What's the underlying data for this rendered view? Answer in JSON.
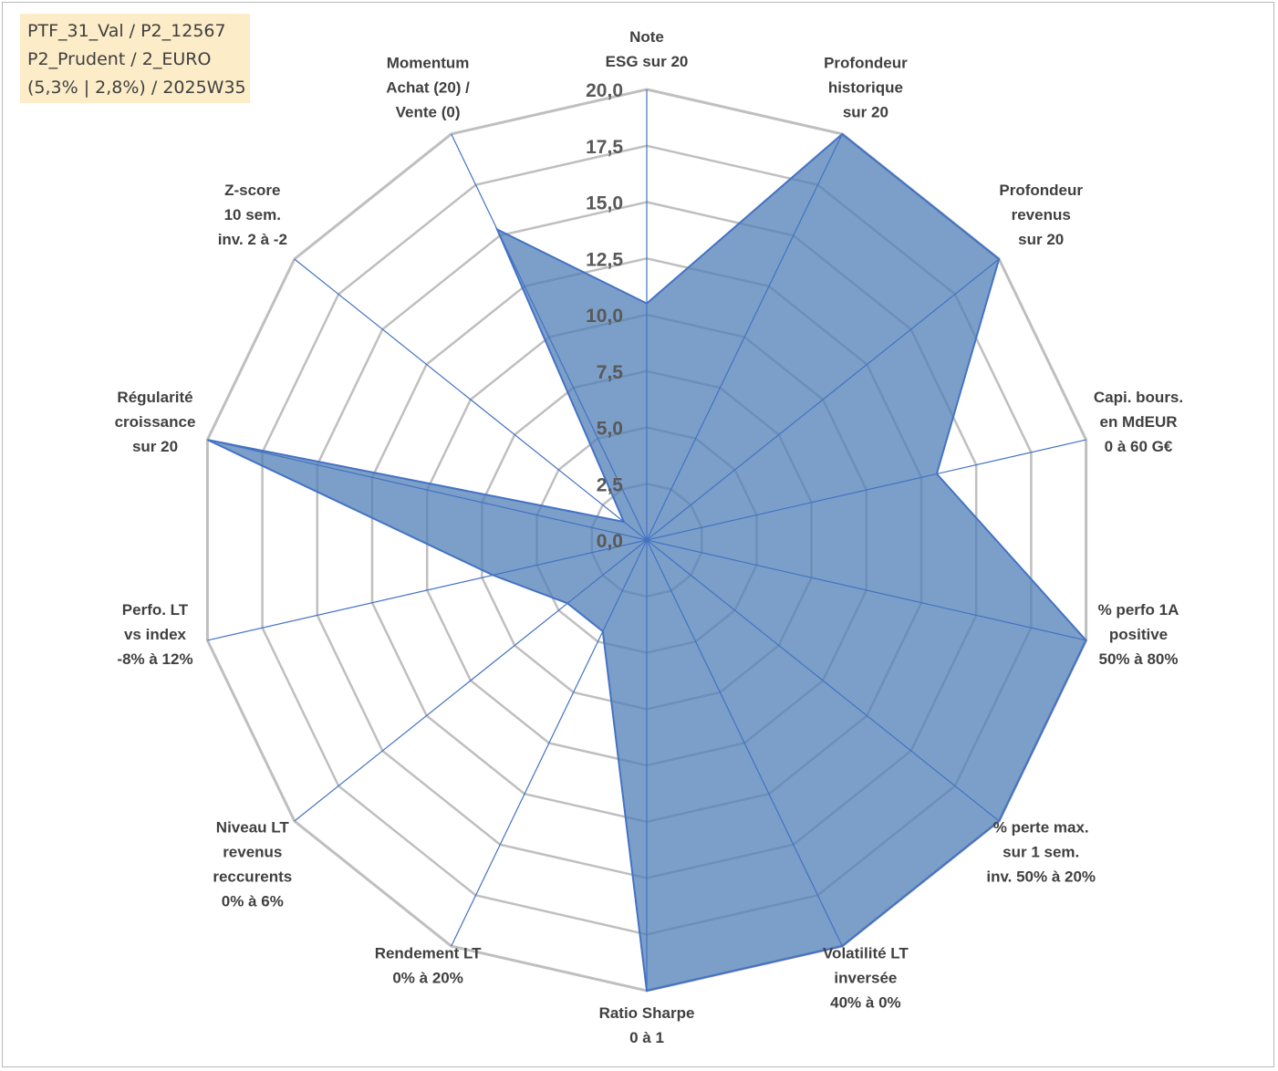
{
  "info_box": {
    "lines": [
      "PTF_31_Val / P2_12567",
      "P2_Prudent / 2_EURO",
      "(5,3% | 2,8%) / 2025W35"
    ]
  },
  "chart_data": {
    "type": "radar",
    "title": "",
    "axes": [
      {
        "label_lines": [
          "Note",
          "ESG sur 20"
        ]
      },
      {
        "label_lines": [
          "Profondeur",
          "historique",
          "sur 20"
        ]
      },
      {
        "label_lines": [
          "Profondeur",
          "revenus",
          "sur 20"
        ]
      },
      {
        "label_lines": [
          "Capi. bours.",
          "en MdEUR",
          "0 à 60 G€"
        ]
      },
      {
        "label_lines": [
          "% perfo 1A",
          "positive",
          "50% à 80%"
        ]
      },
      {
        "label_lines": [
          "% perte max.",
          "sur 1 sem.",
          "inv. 50% à 20%"
        ]
      },
      {
        "label_lines": [
          "Volatilité LT",
          "inversée",
          "40% à 0%"
        ]
      },
      {
        "label_lines": [
          "Ratio Sharpe",
          "0 à 1"
        ]
      },
      {
        "label_lines": [
          "Rendement LT",
          "0% à 20%"
        ]
      },
      {
        "label_lines": [
          "Niveau LT",
          "revenus",
          "reccurents",
          "0% à 6%"
        ]
      },
      {
        "label_lines": [
          "Perfo. LT",
          "vs index",
          "-8% à 12%"
        ]
      },
      {
        "label_lines": [
          "Régularité",
          "croissance",
          "sur 20"
        ]
      },
      {
        "label_lines": [
          "Z-score",
          "10 sem.",
          "inv. 2 à -2"
        ]
      },
      {
        "label_lines": [
          "Momentum",
          "Achat (20) /",
          "Vente (0)"
        ]
      }
    ],
    "series": [
      {
        "values": [
          10.5,
          20.0,
          20.0,
          13.2,
          20.0,
          20.0,
          20.0,
          20.0,
          4.5,
          4.5,
          7.0,
          20.0,
          1.3,
          15.3
        ]
      }
    ],
    "ticks": [
      "0,0",
      "2,5",
      "5,0",
      "7,5",
      "10,0",
      "12,5",
      "15,0",
      "17,5",
      "20,0"
    ],
    "rlim": [
      0,
      20
    ],
    "grid": true,
    "legend": "none",
    "colors": {
      "fill": "#4f7fb6",
      "stroke": "#4472c4",
      "grid": "#bfbfbf",
      "spoke": "#4472c4"
    }
  }
}
